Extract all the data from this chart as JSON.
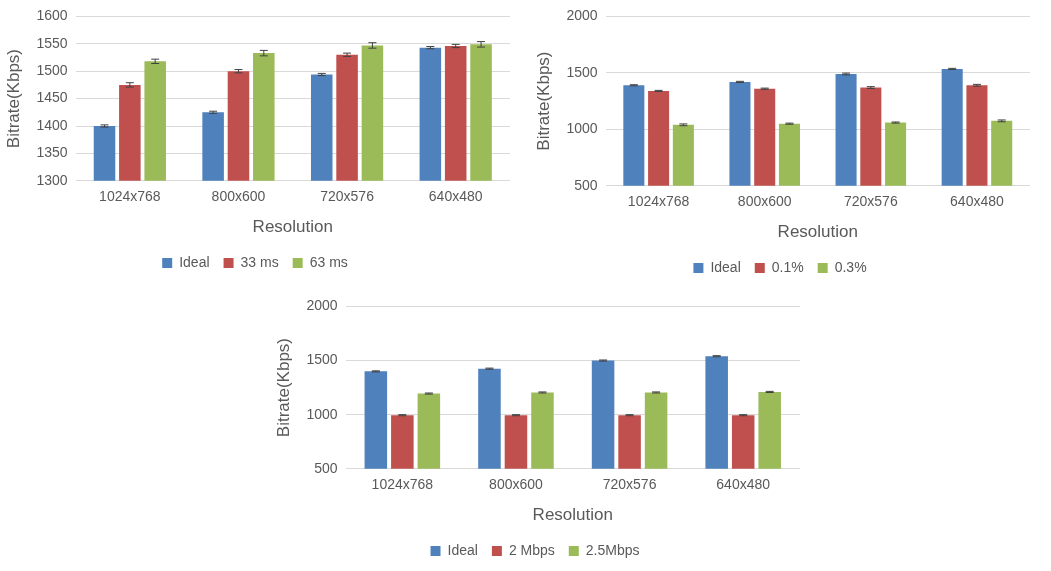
{
  "chart_data": [
    {
      "type": "bar",
      "xlabel": "Resolution",
      "ylabel": "Bitrate(Kbps)",
      "categories": [
        "1024x768",
        "800x600",
        "720x576",
        "640x480"
      ],
      "ylim": [
        1300,
        1600
      ],
      "yticks": [
        1300,
        1350,
        1400,
        1450,
        1500,
        1550,
        1600
      ],
      "grid": "y",
      "legend": "bottom",
      "series": [
        {
          "name": "Ideal",
          "color": "#4f81bd",
          "values": [
            1400,
            1425,
            1494,
            1543
          ],
          "errors": [
            2,
            2,
            2,
            2
          ]
        },
        {
          "name": "33 ms",
          "color": "#c0504d",
          "values": [
            1475,
            1500,
            1530,
            1546
          ],
          "errors": [
            4,
            3,
            3,
            3
          ]
        },
        {
          "name": "63 ms",
          "color": "#9bbb59",
          "values": [
            1518,
            1533,
            1547,
            1549
          ],
          "errors": [
            4,
            5,
            5,
            5
          ]
        }
      ]
    },
    {
      "type": "bar",
      "xlabel": "Resolution",
      "ylabel": "Bitrate(Kbps)",
      "categories": [
        "1024x768",
        "800x600",
        "720x576",
        "640x480"
      ],
      "ylim": [
        500,
        2000
      ],
      "yticks": [
        500,
        1000,
        1500,
        2000
      ],
      "grid": "y",
      "legend": "bottom",
      "series": [
        {
          "name": "Ideal",
          "color": "#4f81bd",
          "values": [
            1390,
            1420,
            1490,
            1535
          ],
          "errors": [
            5,
            5,
            8,
            5
          ]
        },
        {
          "name": "0.1%",
          "color": "#c0504d",
          "values": [
            1340,
            1360,
            1370,
            1390
          ],
          "errors": [
            5,
            5,
            8,
            8
          ]
        },
        {
          "name": "0.3%",
          "color": "#9bbb59",
          "values": [
            1040,
            1050,
            1060,
            1075
          ],
          "errors": [
            8,
            5,
            5,
            8
          ]
        }
      ]
    },
    {
      "type": "bar",
      "xlabel": "Resolution",
      "ylabel": "Bitrate(Kbps)",
      "categories": [
        "1024x768",
        "800x600",
        "720x576",
        "640x480"
      ],
      "ylim": [
        500,
        2000
      ],
      "yticks": [
        500,
        1000,
        1500,
        2000
      ],
      "grid": "y",
      "legend": "bottom",
      "series": [
        {
          "name": "Ideal",
          "color": "#4f81bd",
          "values": [
            1400,
            1425,
            1500,
            1540
          ],
          "errors": [
            5,
            5,
            5,
            5
          ]
        },
        {
          "name": "2 Mbps",
          "color": "#c0504d",
          "values": [
            995,
            995,
            995,
            995
          ],
          "errors": [
            5,
            5,
            5,
            5
          ]
        },
        {
          "name": "2.5Mbps",
          "color": "#9bbb59",
          "values": [
            1195,
            1205,
            1205,
            1210
          ],
          "errors": [
            5,
            5,
            5,
            5
          ]
        }
      ]
    }
  ]
}
